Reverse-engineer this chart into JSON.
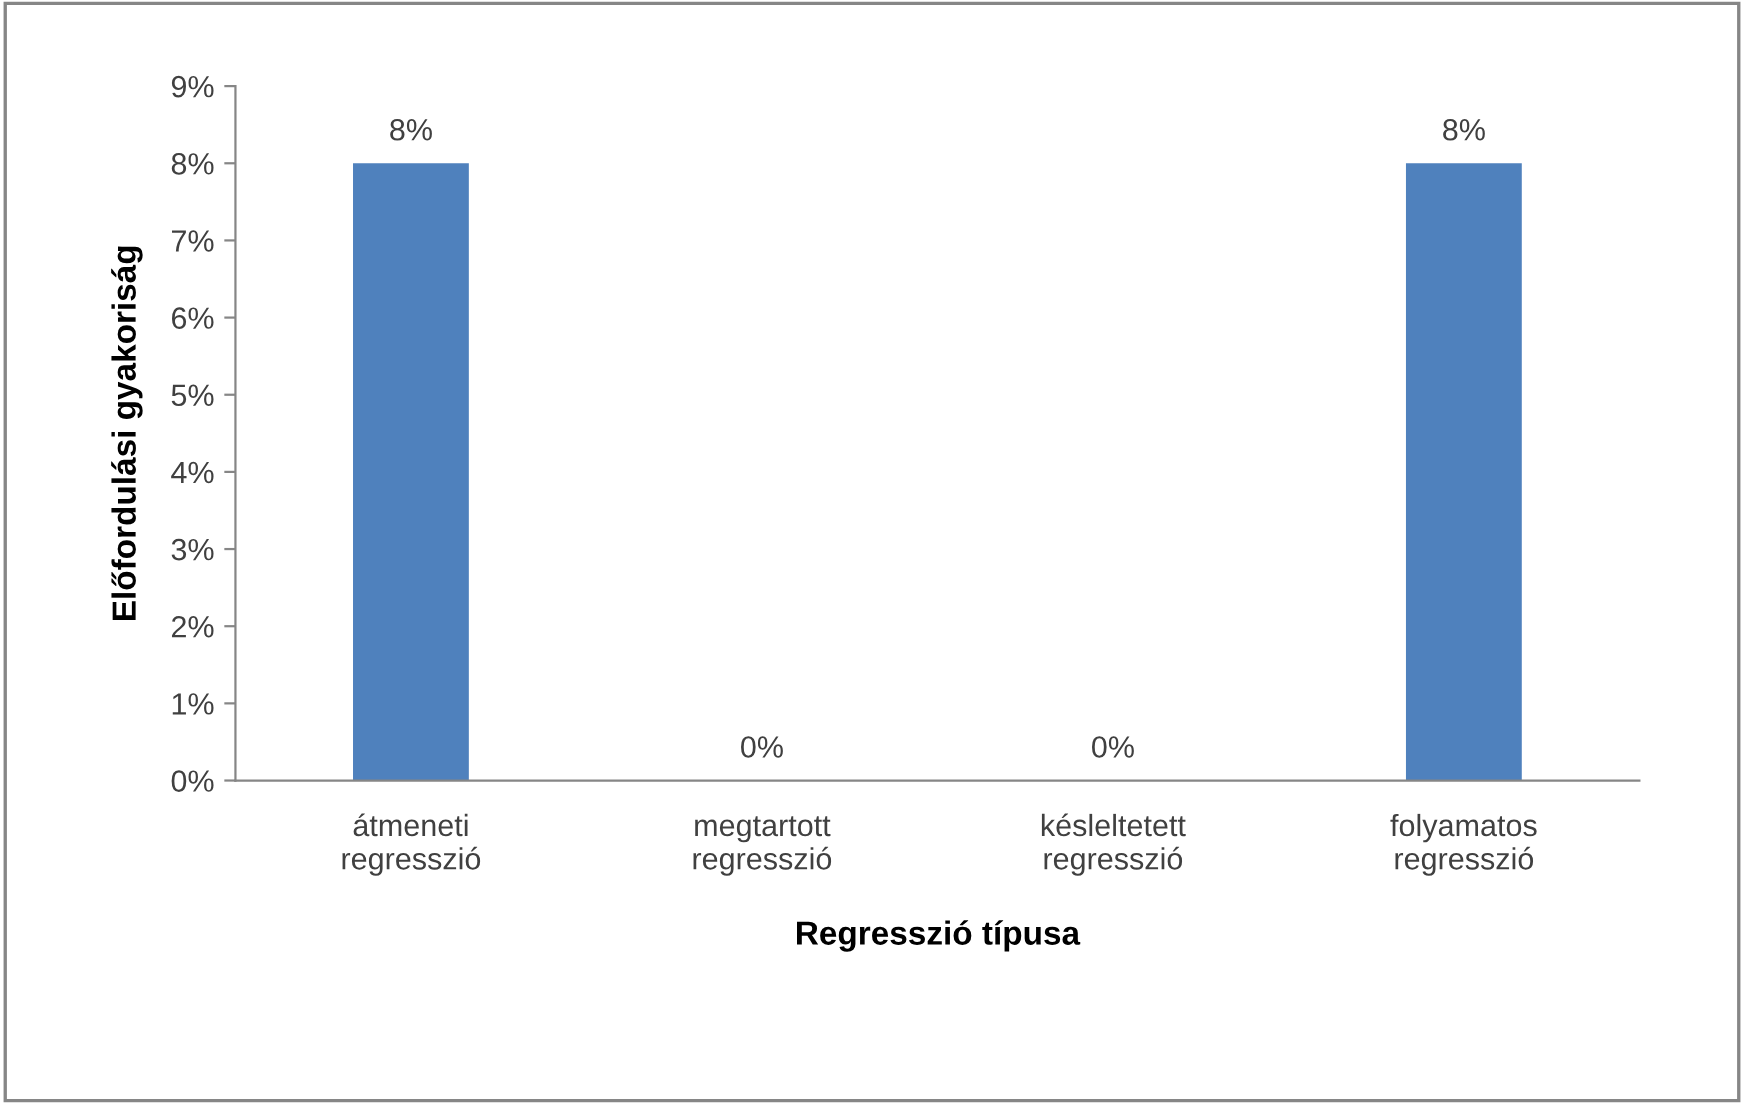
{
  "chart_data": {
    "type": "bar",
    "xlabel": "Regresszió típusa",
    "ylabel": "Előfordulási gyakoriság",
    "categories": [
      "átmeneti\nregresszió",
      "megtartott\nregresszió",
      "késleltetett\nregresszió",
      "folyamatos\nregresszió"
    ],
    "values": [
      8,
      0,
      0,
      8
    ],
    "color": "#4f81bd",
    "value_labels": [
      "8%",
      "0%",
      "0%",
      "8%"
    ],
    "ylim": [
      0,
      9
    ],
    "yticks": [
      {
        "value": 0,
        "label": "0%"
      },
      {
        "value": 1,
        "label": "1%"
      },
      {
        "value": 2,
        "label": "2%"
      },
      {
        "value": 3,
        "label": "3%"
      },
      {
        "value": 4,
        "label": "4%"
      },
      {
        "value": 5,
        "label": "5%"
      },
      {
        "value": 6,
        "label": "6%"
      },
      {
        "value": 7,
        "label": "7%"
      },
      {
        "value": 8,
        "label": "8%"
      },
      {
        "value": 9,
        "label": "9%"
      }
    ],
    "grid": false,
    "legend": false
  }
}
